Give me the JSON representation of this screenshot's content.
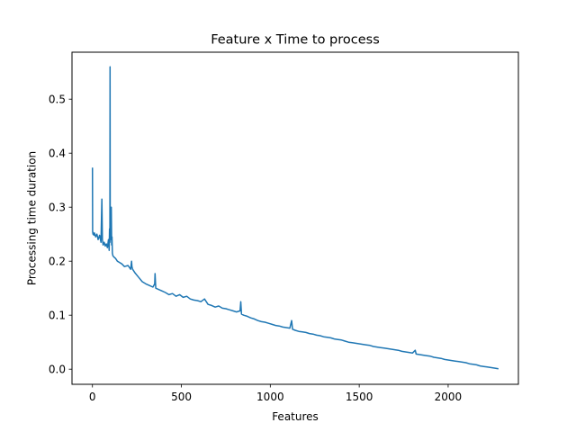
{
  "chart_data": {
    "type": "line",
    "title": "Feature x Time to process",
    "xlabel": "Features",
    "ylabel": "Processing time duration",
    "xlim": [
      -115,
      2395
    ],
    "ylim": [
      -0.028,
      0.587
    ],
    "xticks": [
      0,
      500,
      1000,
      1500,
      2000
    ],
    "yticks": [
      0.0,
      0.1,
      0.2,
      0.3,
      0.4,
      0.5
    ],
    "xtick_labels": [
      "0",
      "500",
      "1000",
      "1500",
      "2000"
    ],
    "ytick_labels": [
      "0.0",
      "0.1",
      "0.2",
      "0.3",
      "0.4",
      "0.5"
    ],
    "grid": false,
    "series": [
      {
        "color": "#1f77b4",
        "x": [
          0,
          1,
          3,
          5,
          8,
          12,
          18,
          25,
          32,
          40,
          48,
          53,
          56,
          60,
          66,
          72,
          78,
          84,
          90,
          94,
          96,
          98,
          99,
          100,
          102,
          104,
          106,
          108,
          110,
          112,
          115,
          120,
          130,
          140,
          150,
          165,
          180,
          200,
          215,
          220,
          222,
          226,
          240,
          260,
          280,
          300,
          320,
          340,
          350,
          352,
          356,
          370,
          390,
          410,
          430,
          450,
          470,
          490,
          510,
          530,
          550,
          570,
          590,
          610,
          630,
          650,
          670,
          690,
          710,
          730,
          750,
          770,
          790,
          810,
          830,
          834,
          838,
          850,
          870,
          890,
          910,
          930,
          950,
          970,
          990,
          1010,
          1030,
          1050,
          1070,
          1090,
          1110,
          1120,
          1125,
          1140,
          1160,
          1180,
          1200,
          1220,
          1240,
          1260,
          1280,
          1300,
          1320,
          1340,
          1360,
          1380,
          1400,
          1420,
          1440,
          1460,
          1480,
          1500,
          1520,
          1540,
          1560,
          1580,
          1600,
          1620,
          1640,
          1660,
          1680,
          1700,
          1720,
          1740,
          1760,
          1780,
          1800,
          1815,
          1820,
          1840,
          1860,
          1880,
          1900,
          1920,
          1940,
          1960,
          1980,
          2000,
          2020,
          2040,
          2060,
          2080,
          2100,
          2120,
          2140,
          2160,
          2180,
          2200,
          2220,
          2240,
          2260,
          2279
        ],
        "y": [
          0.372,
          0.255,
          0.25,
          0.253,
          0.248,
          0.252,
          0.245,
          0.25,
          0.24,
          0.248,
          0.235,
          0.315,
          0.24,
          0.23,
          0.235,
          0.228,
          0.232,
          0.225,
          0.24,
          0.22,
          0.26,
          0.235,
          0.56,
          0.25,
          0.3,
          0.24,
          0.3,
          0.23,
          0.245,
          0.215,
          0.21,
          0.208,
          0.205,
          0.2,
          0.198,
          0.195,
          0.19,
          0.192,
          0.185,
          0.2,
          0.19,
          0.185,
          0.178,
          0.17,
          0.162,
          0.158,
          0.155,
          0.152,
          0.158,
          0.177,
          0.15,
          0.148,
          0.145,
          0.142,
          0.138,
          0.14,
          0.135,
          0.138,
          0.133,
          0.135,
          0.13,
          0.128,
          0.127,
          0.125,
          0.13,
          0.12,
          0.118,
          0.115,
          0.117,
          0.113,
          0.112,
          0.11,
          0.108,
          0.106,
          0.108,
          0.125,
          0.102,
          0.1,
          0.098,
          0.095,
          0.093,
          0.09,
          0.088,
          0.087,
          0.085,
          0.083,
          0.081,
          0.08,
          0.078,
          0.077,
          0.076,
          0.09,
          0.074,
          0.072,
          0.07,
          0.069,
          0.068,
          0.066,
          0.065,
          0.063,
          0.062,
          0.06,
          0.059,
          0.058,
          0.056,
          0.055,
          0.054,
          0.052,
          0.05,
          0.049,
          0.048,
          0.047,
          0.046,
          0.045,
          0.044,
          0.042,
          0.041,
          0.04,
          0.039,
          0.038,
          0.037,
          0.036,
          0.035,
          0.033,
          0.032,
          0.031,
          0.03,
          0.035,
          0.028,
          0.027,
          0.026,
          0.025,
          0.024,
          0.022,
          0.021,
          0.02,
          0.018,
          0.017,
          0.016,
          0.015,
          0.014,
          0.013,
          0.012,
          0.01,
          0.009,
          0.008,
          0.006,
          0.005,
          0.004,
          0.003,
          0.002,
          0.001
        ]
      }
    ]
  }
}
